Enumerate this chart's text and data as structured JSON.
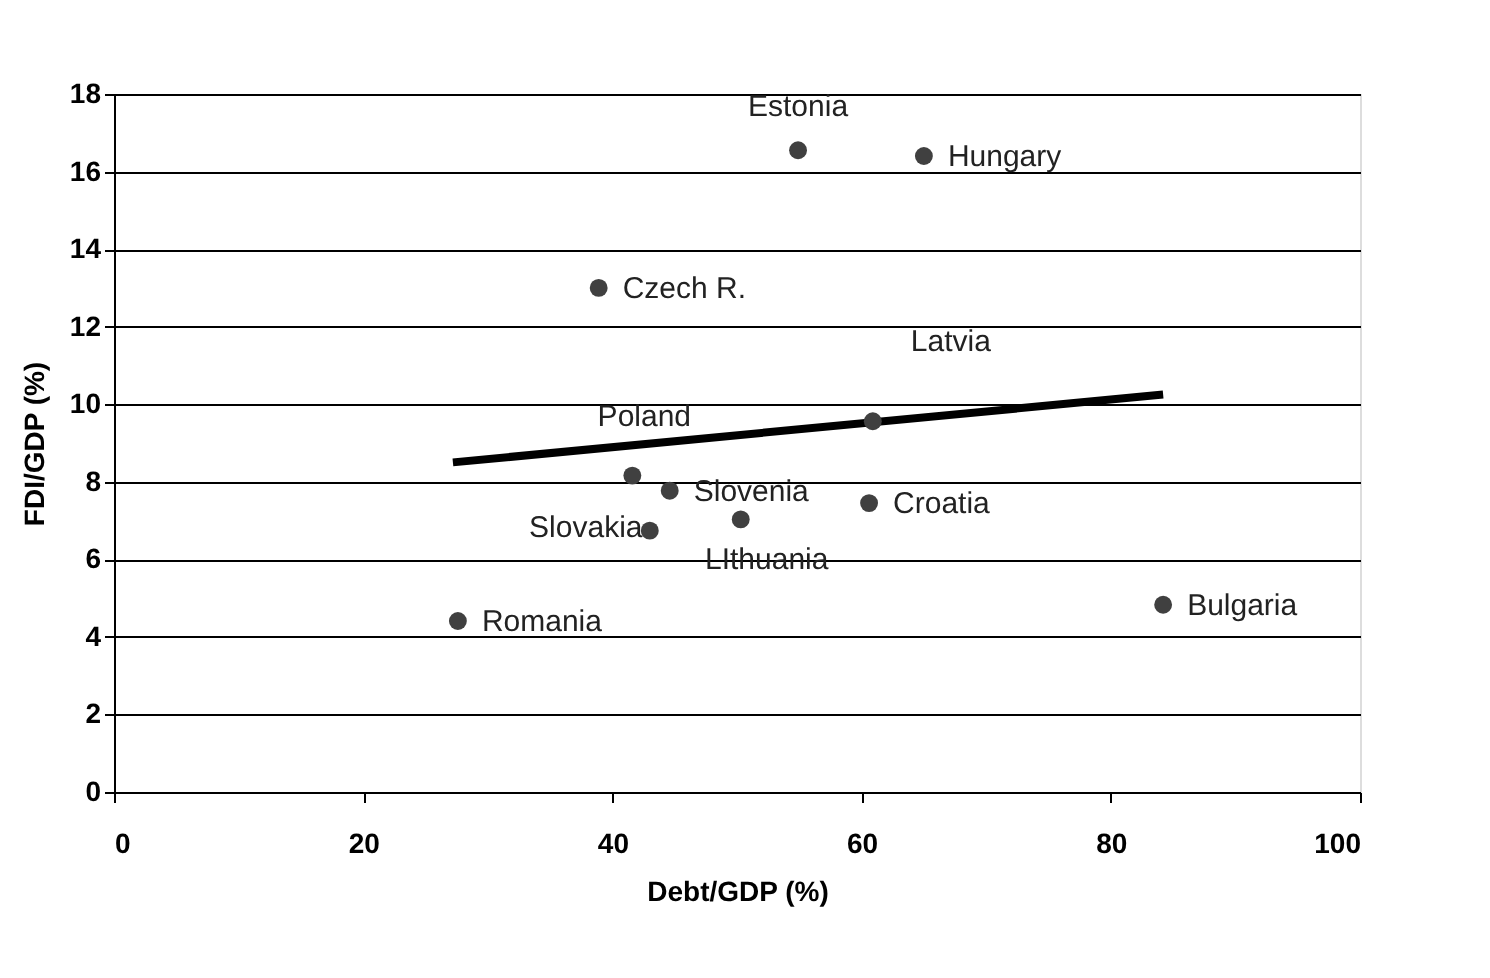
{
  "chart_data": {
    "type": "scatter",
    "xlabel": "Debt/GDP (%)",
    "ylabel": "FDI/GDP (%)",
    "xlim": [
      0,
      100
    ],
    "xticks": [
      0,
      20,
      40,
      60,
      80,
      100
    ],
    "ylim": [
      0,
      18
    ],
    "yticks": [
      0,
      2,
      4,
      6,
      8,
      10,
      12,
      14,
      16,
      18
    ],
    "grid": "y",
    "series": [
      {
        "marker": "circle",
        "color": "#404040",
        "x": [
          54.9,
          65.0,
          38.9,
          60.9,
          41.6,
          44.6,
          43.0,
          50.3,
          60.6,
          27.6,
          84.2
        ],
        "values": [
          16.55,
          16.4,
          13.0,
          9.56,
          8.16,
          7.77,
          6.74,
          7.03,
          7.45,
          4.41,
          4.83
        ]
      },
      {
        "type": "line",
        "color": "#000000",
        "x": [
          27.2,
          84.2
        ],
        "values": [
          8.5,
          10.25
        ]
      }
    ],
    "annotations": [
      {
        "text": "Estonia",
        "x": 54.9,
        "y": 16.55
      },
      {
        "text": "Hungary",
        "x": 65.0,
        "y": 16.4
      },
      {
        "text": "Czech R.",
        "x": 38.9,
        "y": 13.0
      },
      {
        "text": "Latvia",
        "x": 60.9,
        "y": 9.56
      },
      {
        "text": "Poland",
        "x": 41.6,
        "y": 8.16
      },
      {
        "text": "Slovenia",
        "x": 44.6,
        "y": 7.77
      },
      {
        "text": "Slovakia",
        "x": 43.0,
        "y": 6.74
      },
      {
        "text": "LIthuania",
        "x": 50.3,
        "y": 7.03
      },
      {
        "text": "Croatia",
        "x": 60.6,
        "y": 7.45
      },
      {
        "text": "Romania",
        "x": 27.6,
        "y": 4.41
      },
      {
        "text": "Bulgaria",
        "x": 84.2,
        "y": 4.83
      }
    ]
  }
}
